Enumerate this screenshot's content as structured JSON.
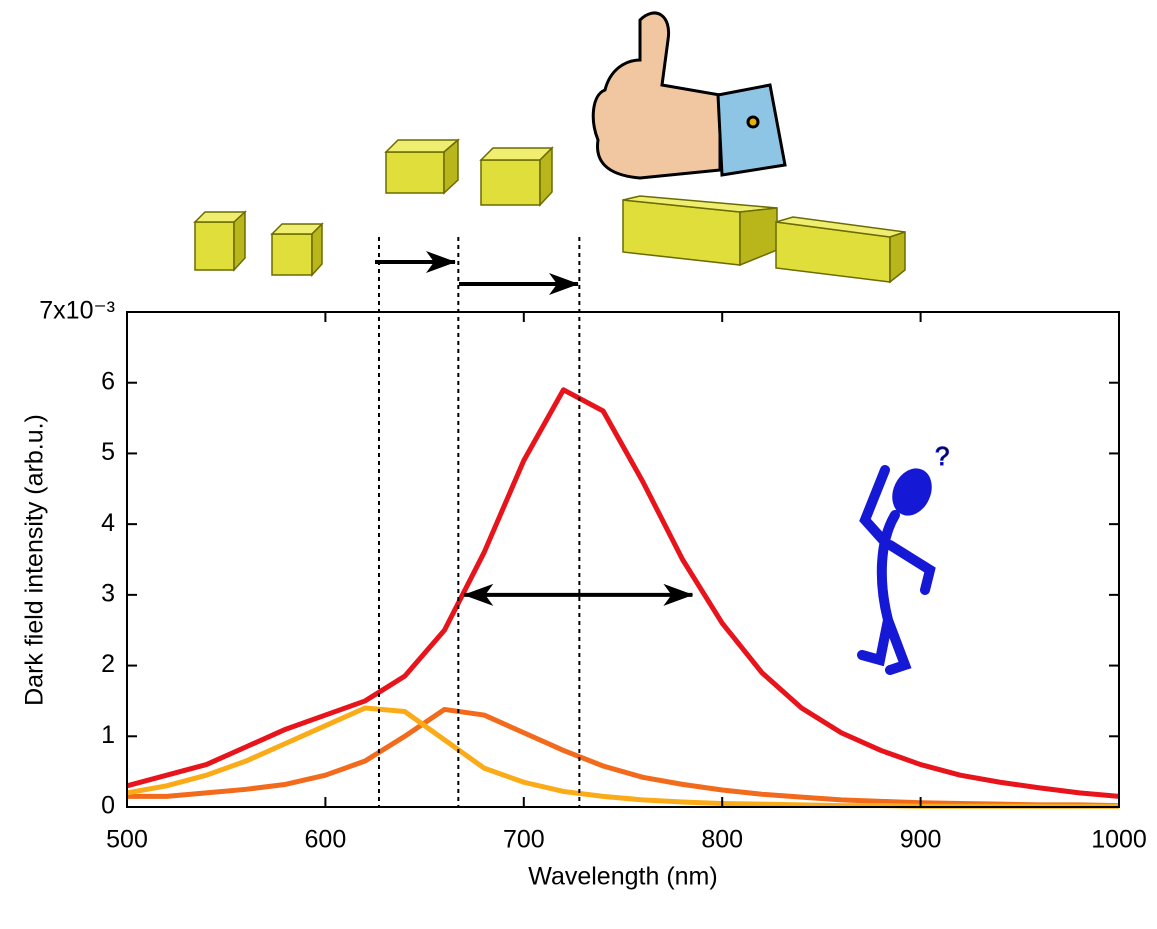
{
  "chart_data": {
    "type": "line",
    "x_label": "Wavelength (nm)",
    "y_label": "Dark field intensity (arb.u.)",
    "x": [
      500,
      520,
      540,
      560,
      580,
      600,
      620,
      640,
      660,
      680,
      700,
      720,
      740,
      760,
      780,
      800,
      820,
      840,
      860,
      880,
      900,
      920,
      940,
      960,
      980,
      1000
    ],
    "series": [
      {
        "color": "#e8141c",
        "values": [
          0.3,
          0.45,
          0.6,
          0.85,
          1.1,
          1.3,
          1.5,
          1.85,
          2.5,
          3.6,
          4.9,
          5.9,
          5.6,
          4.6,
          3.5,
          2.6,
          1.9,
          1.4,
          1.05,
          0.8,
          0.6,
          0.45,
          0.35,
          0.27,
          0.2,
          0.15
        ]
      },
      {
        "color": "#f26a1b",
        "values": [
          0.15,
          0.15,
          0.2,
          0.25,
          0.32,
          0.45,
          0.65,
          1.0,
          1.38,
          1.3,
          1.05,
          0.8,
          0.58,
          0.42,
          0.32,
          0.24,
          0.18,
          0.14,
          0.1,
          0.08,
          0.06,
          0.05,
          0.04,
          0.03,
          0.03,
          0.02
        ]
      },
      {
        "color": "#fbab18",
        "values": [
          0.2,
          0.3,
          0.45,
          0.65,
          0.9,
          1.15,
          1.4,
          1.35,
          0.95,
          0.55,
          0.35,
          0.22,
          0.15,
          0.1,
          0.07,
          0.05,
          0.04,
          0.03,
          0.02,
          0.02,
          0.01,
          0.01,
          0.01,
          0.01,
          0.01,
          0.01
        ]
      }
    ],
    "xlim": [
      500,
      1000
    ],
    "xticks": [
      500,
      600,
      700,
      800,
      900,
      1000
    ],
    "ylim": [
      0,
      7
    ],
    "yticks": [
      0,
      1,
      2,
      3,
      4,
      5,
      6,
      {
        "value": 7,
        "label": "7x10⁻³"
      }
    ],
    "vlines": [
      627,
      667,
      728
    ],
    "width_arrow": {
      "x": [
        670,
        785
      ],
      "y": 3
    }
  }
}
